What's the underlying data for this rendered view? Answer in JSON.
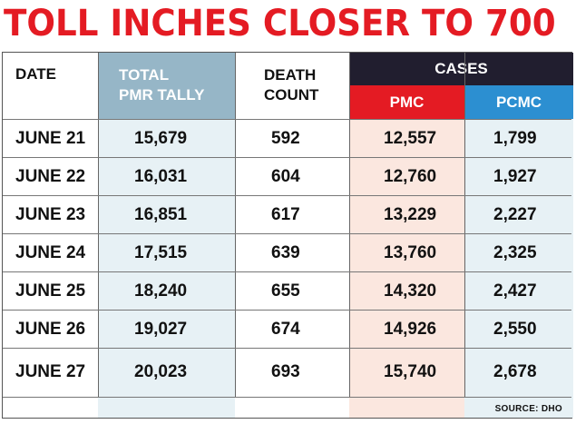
{
  "title": "TOLL INCHES CLOSER TO 700",
  "headers": {
    "date": "DATE",
    "total_line1": "TOTAL",
    "total_line2": "PMR TALLY",
    "death_line1": "DEATH",
    "death_line2": "COUNT",
    "cases": "CASES",
    "pmc": "PMC",
    "pcmc": "PCMC"
  },
  "rows": [
    {
      "date": "JUNE 21",
      "total": "15,679",
      "death": "592",
      "pmc": "12,557",
      "pcmc": "1,799"
    },
    {
      "date": "JUNE 22",
      "total": "16,031",
      "death": "604",
      "pmc": "12,760",
      "pcmc": "1,927"
    },
    {
      "date": "JUNE 23",
      "total": "16,851",
      "death": "617",
      "pmc": "13,229",
      "pcmc": "2,227"
    },
    {
      "date": "JUNE 24",
      "total": "17,515",
      "death": "639",
      "pmc": "13,760",
      "pcmc": "2,325"
    },
    {
      "date": "JUNE 25",
      "total": "18,240",
      "death": "655",
      "pmc": "14,320",
      "pcmc": "2,427"
    },
    {
      "date": "JUNE 26",
      "total": "19,027",
      "death": "674",
      "pmc": "14,926",
      "pcmc": "2,550"
    },
    {
      "date": "JUNE 27",
      "total": "20,023",
      "death": "693",
      "pmc": "15,740",
      "pcmc": "2,678"
    }
  ],
  "source": "SOURCE: DHO",
  "colors": {
    "title_red": "#e41b23",
    "total_header": "#96b6c7",
    "cases_header": "#211e2f",
    "pmc_header": "#e41b23",
    "pcmc_header": "#2c8fd1",
    "pmc_fill": "#fbe7df",
    "blue_fill": "#e7f1f5"
  }
}
